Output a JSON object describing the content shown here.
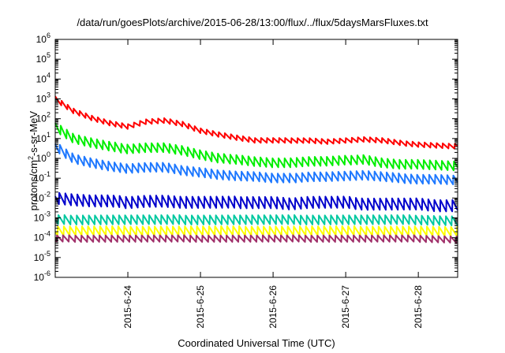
{
  "chart_data": {
    "type": "line",
    "title": "/data/run/goesPlots/archive/2015-06-28/13:00/flux/../flux/5daysMarsFluxes.txt",
    "xlabel": "Coordinated Universal Time (UTC)",
    "ylabel": {
      "pre": "protons/cm",
      "sup": "2",
      "post": "-s-sr-MeV"
    },
    "y_scale": "log",
    "ylim": [
      1e-06,
      1000000.0
    ],
    "xlim": [
      "2015-06-23 00:00",
      "2015-06-28 13:00"
    ],
    "y_ticks": [
      {
        "value": 1e-06,
        "base": "10",
        "exp": "-6"
      },
      {
        "value": 1e-05,
        "base": "10",
        "exp": "-5"
      },
      {
        "value": 0.0001,
        "base": "10",
        "exp": "-4"
      },
      {
        "value": 0.001,
        "base": "10",
        "exp": "-3"
      },
      {
        "value": 0.01,
        "base": "10",
        "exp": "-2"
      },
      {
        "value": 0.1,
        "base": "10",
        "exp": "-1"
      },
      {
        "value": 1,
        "base": "10",
        "exp": "0"
      },
      {
        "value": 10,
        "base": "10",
        "exp": "1"
      },
      {
        "value": 100,
        "base": "10",
        "exp": "2"
      },
      {
        "value": 1000,
        "base": "10",
        "exp": "3"
      },
      {
        "value": 10000,
        "base": "10",
        "exp": "4"
      },
      {
        "value": 100000,
        "base": "10",
        "exp": "5"
      },
      {
        "value": 1000000,
        "base": "10",
        "exp": "6"
      }
    ],
    "x_ticks": [
      {
        "label": "2015-6-24",
        "value": "2015-06-24 00:00"
      },
      {
        "label": "2015-6-25",
        "value": "2015-06-25 00:00"
      },
      {
        "label": "2015-6-26",
        "value": "2015-06-26 00:00"
      },
      {
        "label": "2015-6-27",
        "value": "2015-06-27 00:00"
      },
      {
        "label": "2015-6-28",
        "value": "2015-06-28 00:00"
      }
    ],
    "grid": false,
    "series": [
      {
        "color": "#ff0000",
        "x_unit": "days from 2015-06-23 00:00",
        "x": [
          0,
          0.25,
          0.5,
          0.75,
          1.0,
          1.25,
          1.5,
          1.75,
          2.0,
          2.25,
          2.5,
          2.75,
          3.0,
          3.25,
          3.5,
          3.75,
          4.0,
          4.25,
          4.5,
          4.75,
          5.0,
          5.25,
          5.54
        ],
        "y": [
          1000,
          250,
          110,
          60,
          40,
          70,
          80,
          55,
          25,
          16,
          11,
          8,
          8,
          8,
          8,
          7,
          8,
          9,
          8,
          6,
          5,
          4.5,
          4
        ],
        "sawtooth": {
          "periods_per_day": 12,
          "amplitude": 1.8,
          "ramp": "decay"
        }
      },
      {
        "color": "#00ee00",
        "x": [
          0,
          0.25,
          0.5,
          0.75,
          1.0,
          1.25,
          1.5,
          1.75,
          2.0,
          2.25,
          2.5,
          2.75,
          3.0,
          3.25,
          3.5,
          3.75,
          4.0,
          4.25,
          4.5,
          4.75,
          5.0,
          5.25,
          5.54
        ],
        "y": [
          40,
          10,
          6,
          4,
          3,
          3.5,
          3.5,
          2.5,
          1.5,
          1.0,
          0.9,
          0.7,
          0.6,
          0.6,
          0.7,
          0.7,
          0.8,
          0.9,
          0.6,
          0.5,
          0.5,
          0.45,
          0.4
        ],
        "sawtooth": {
          "periods_per_day": 12,
          "amplitude": 3.0,
          "ramp": "decay"
        }
      },
      {
        "color": "#1e78ff",
        "x": [
          0,
          0.25,
          0.5,
          0.75,
          1.0,
          1.25,
          1.5,
          1.75,
          2.0,
          2.25,
          2.5,
          2.75,
          3.0,
          3.25,
          3.5,
          3.75,
          4.0,
          4.25,
          4.5,
          4.75,
          5.0,
          5.25,
          5.54
        ],
        "y": [
          4,
          1.0,
          0.6,
          0.4,
          0.3,
          0.35,
          0.35,
          0.25,
          0.2,
          0.15,
          0.13,
          0.12,
          0.1,
          0.1,
          0.12,
          0.12,
          0.13,
          0.14,
          0.12,
          0.1,
          0.09,
          0.09,
          0.08
        ],
        "sawtooth": {
          "periods_per_day": 12,
          "amplitude": 3.0,
          "ramp": "decay"
        }
      },
      {
        "color": "#0000cc",
        "x": [
          0,
          0.25,
          0.5,
          0.75,
          1.0,
          1.25,
          1.5,
          1.75,
          2.0,
          2.25,
          2.5,
          2.75,
          3.0,
          3.25,
          3.5,
          3.75,
          4.0,
          4.25,
          4.5,
          4.75,
          5.0,
          5.25,
          5.54
        ],
        "y": [
          0.01,
          0.008,
          0.007,
          0.007,
          0.006,
          0.007,
          0.007,
          0.006,
          0.006,
          0.006,
          0.006,
          0.006,
          0.006,
          0.005,
          0.006,
          0.006,
          0.006,
          0.005,
          0.005,
          0.005,
          0.005,
          0.004,
          0.004
        ],
        "sawtooth": {
          "periods_per_day": 12,
          "amplitude": 4.0,
          "ramp": "decay"
        }
      },
      {
        "color": "#00c8a0",
        "x": [
          0,
          1,
          2,
          3,
          4,
          5,
          5.54
        ],
        "y": [
          0.0008,
          0.0008,
          0.0008,
          0.0008,
          0.0008,
          0.0008,
          0.0007
        ],
        "sawtooth": {
          "periods_per_day": 12,
          "amplitude": 3.0,
          "ramp": "decay"
        }
      },
      {
        "color": "#ffff00",
        "x": [
          0,
          1,
          2,
          3,
          4,
          5,
          5.54
        ],
        "y": [
          0.00022,
          0.00022,
          0.00022,
          0.00022,
          0.00022,
          0.00022,
          0.0002
        ],
        "sawtooth": {
          "periods_per_day": 12,
          "amplitude": 3.0,
          "ramp": "decay"
        }
      },
      {
        "color": "#a0306a",
        "x": [
          0,
          1,
          2,
          3,
          4,
          5,
          5.54
        ],
        "y": [
          9e-05,
          9e-05,
          9e-05,
          9e-05,
          9e-05,
          9e-05,
          8e-05
        ],
        "sawtooth": {
          "periods_per_day": 12,
          "amplitude": 2.2,
          "ramp": "decay"
        }
      }
    ]
  }
}
